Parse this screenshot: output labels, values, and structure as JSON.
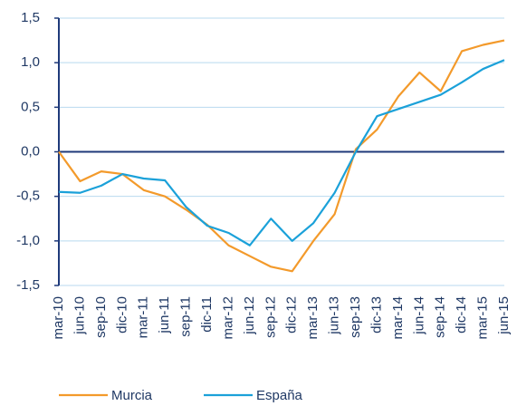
{
  "chart_data": {
    "type": "line",
    "categories": [
      "mar-10",
      "jun-10",
      "sep-10",
      "dic-10",
      "mar-11",
      "jun-11",
      "sep-11",
      "dic-11",
      "mar-12",
      "jun-12",
      "sep-12",
      "dic-12",
      "mar-13",
      "jun-13",
      "sep-13",
      "dic-13",
      "mar-14",
      "jun-14",
      "sep-14",
      "dic-14",
      "mar-15",
      "jun-15"
    ],
    "series": [
      {
        "name": "Murcia",
        "color": "#f39a2b",
        "values": [
          0.0,
          -0.33,
          -0.22,
          -0.25,
          -0.43,
          -0.5,
          -0.65,
          -0.82,
          -1.05,
          -1.17,
          -1.29,
          -1.34,
          -1.0,
          -0.7,
          0.03,
          0.25,
          0.62,
          0.89,
          0.68,
          1.13,
          1.2,
          1.25
        ]
      },
      {
        "name": "España",
        "color": "#1ba1d9",
        "values": [
          -0.45,
          -0.46,
          -0.38,
          -0.25,
          -0.3,
          -0.32,
          -0.62,
          -0.83,
          -0.91,
          -1.05,
          -0.75,
          -1.0,
          -0.8,
          -0.46,
          0.0,
          0.4,
          0.48,
          0.56,
          0.64,
          0.78,
          0.93,
          1.03
        ]
      }
    ],
    "ylim": [
      -1.5,
      1.5
    ],
    "yticks": [
      {
        "value": -1.5,
        "label": "-1,5"
      },
      {
        "value": -1.0,
        "label": "-1,0"
      },
      {
        "value": -0.5,
        "label": "-0,5"
      },
      {
        "value": 0,
        "label": "0,0"
      },
      {
        "value": 0.5,
        "label": "0,5"
      },
      {
        "value": 1.0,
        "label": "1,0"
      },
      {
        "value": 1.5,
        "label": "1,5"
      }
    ],
    "grid": true
  }
}
